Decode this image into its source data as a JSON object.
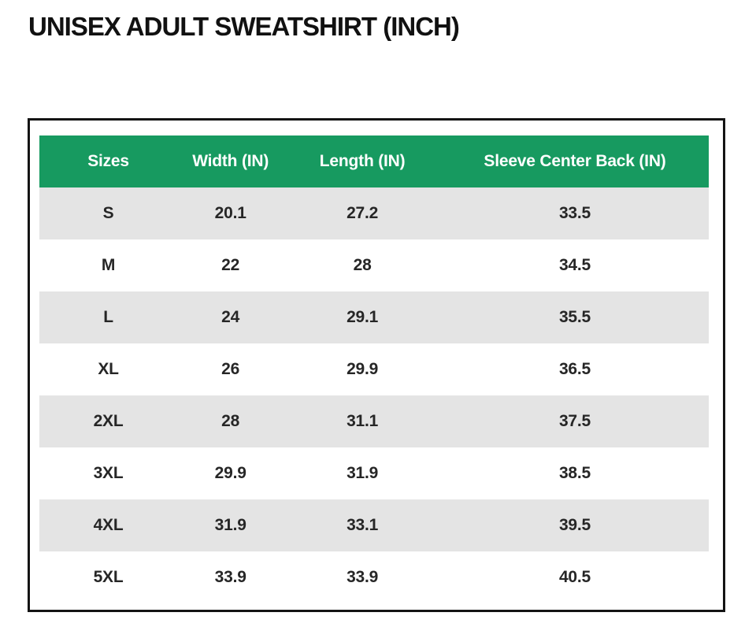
{
  "title": "UNISEX ADULT SWEATSHIRT (INCH)",
  "colors": {
    "header_bg": "#179a60",
    "header_text": "#ffffff",
    "row_alt_bg": "#e4e4e4",
    "row_bg": "#ffffff",
    "border": "#141414",
    "cell_text": "#262626",
    "title_text": "#111111"
  },
  "chart_data": {
    "type": "table",
    "title": "UNISEX ADULT SWEATSHIRT (INCH)",
    "unit": "IN",
    "columns": [
      "Sizes",
      "Width (IN)",
      "Length (IN)",
      "Sleeve Center Back (IN)"
    ],
    "rows": [
      {
        "size": "S",
        "width": "20.1",
        "length": "27.2",
        "sleeve": "33.5"
      },
      {
        "size": "M",
        "width": "22",
        "length": "28",
        "sleeve": "34.5"
      },
      {
        "size": "L",
        "width": "24",
        "length": "29.1",
        "sleeve": "35.5"
      },
      {
        "size": "XL",
        "width": "26",
        "length": "29.9",
        "sleeve": "36.5"
      },
      {
        "size": "2XL",
        "width": "28",
        "length": "31.1",
        "sleeve": "37.5"
      },
      {
        "size": "3XL",
        "width": "29.9",
        "length": "31.9",
        "sleeve": "38.5"
      },
      {
        "size": "4XL",
        "width": "31.9",
        "length": "33.1",
        "sleeve": "39.5"
      },
      {
        "size": "5XL",
        "width": "33.9",
        "length": "33.9",
        "sleeve": "40.5"
      }
    ],
    "layout": {
      "header_position": "top",
      "zebra_striping": true,
      "first_stripe": "gray"
    }
  }
}
